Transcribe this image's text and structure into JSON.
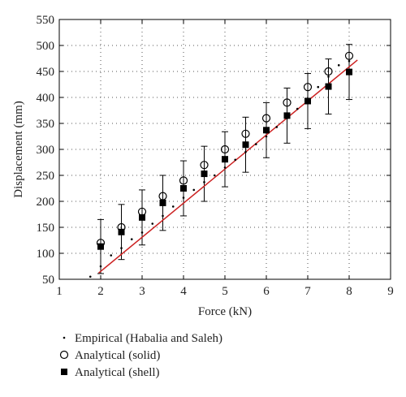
{
  "chart_data": {
    "type": "scatter",
    "xlabel": "Force (kN)",
    "ylabel": "Displacement (mm)",
    "xlim": [
      1,
      9
    ],
    "ylim": [
      50,
      550
    ],
    "xticks": [
      1,
      2,
      3,
      4,
      5,
      6,
      7,
      8,
      9
    ],
    "yticks": [
      50,
      100,
      150,
      200,
      250,
      300,
      350,
      400,
      450,
      500,
      550
    ],
    "grid": "dotted",
    "legend_position": "bottom",
    "series": [
      {
        "name": "Empirical (Habalia and Saleh)",
        "marker": "dot",
        "color": "#000000",
        "x": [
          1.75,
          2.0,
          2.25,
          2.5,
          2.75,
          3.0,
          3.25,
          3.5,
          3.75,
          4.0,
          4.25,
          4.5,
          4.75,
          5.0,
          5.25,
          5.5,
          5.75,
          6.0,
          6.25,
          6.5,
          6.75,
          7.0,
          7.25,
          7.5,
          7.75,
          8.0
        ],
        "y": [
          55,
          75,
          96,
          110,
          127,
          140,
          157,
          172,
          190,
          207,
          222,
          237,
          250,
          265,
          280,
          295,
          310,
          325,
          343,
          360,
          378,
          395,
          420,
          440,
          462,
          470
        ]
      },
      {
        "name": "Analytical (solid)",
        "marker": "open-circle",
        "color": "#000000",
        "x": [
          2,
          2.5,
          3,
          3.5,
          4,
          4.5,
          5,
          5.5,
          6,
          6.5,
          7,
          7.5,
          8
        ],
        "y": [
          120,
          150,
          180,
          210,
          240,
          270,
          300,
          330,
          360,
          390,
          420,
          450,
          480
        ]
      },
      {
        "name": "Analytical (shell)",
        "marker": "filled-square",
        "color": "#000000",
        "x": [
          2,
          2.5,
          3,
          3.5,
          4,
          4.5,
          5,
          5.5,
          6,
          6.5,
          7,
          7.5,
          8
        ],
        "y": [
          113,
          141,
          169,
          197,
          225,
          253,
          281,
          309,
          337,
          365,
          393,
          421,
          449
        ],
        "error": [
          52,
          53,
          53,
          53,
          53,
          53,
          53,
          53,
          53,
          53,
          53,
          53,
          53
        ]
      }
    ],
    "fit_line": {
      "color": "#cc2222",
      "x": [
        1.95,
        8.2
      ],
      "y": [
        62,
        472
      ]
    }
  }
}
